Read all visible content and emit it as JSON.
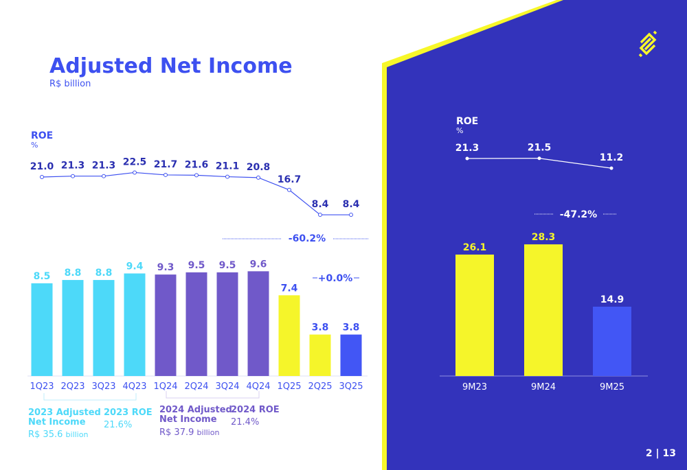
{
  "header": {
    "title": "Adjusted Net Income",
    "subtitle": "R$ billion"
  },
  "page_number": "2 | 13",
  "logo": "banco-do-brasil-logo",
  "colors": {
    "y2023": "#4dd9f9",
    "y2024": "#7059c9",
    "y2025": "#f5f52a",
    "current": "#4256f5",
    "panel": "#3333bb",
    "accent_text": "#3d50f0"
  },
  "chart_data": [
    {
      "type": "bar",
      "title": "",
      "categories": [
        "1Q23",
        "2Q23",
        "3Q23",
        "4Q23",
        "1Q24",
        "2Q24",
        "3Q24",
        "4Q24",
        "1Q25",
        "2Q25",
        "3Q25"
      ],
      "values": [
        8.5,
        8.8,
        8.8,
        9.4,
        9.3,
        9.5,
        9.5,
        9.6,
        7.4,
        3.8,
        3.8
      ],
      "value_labels": [
        "8.5",
        "8.8",
        "8.8",
        "9.4",
        "9.3",
        "9.5",
        "9.5",
        "9.6",
        "7.4",
        "3.8",
        "3.8"
      ],
      "annotations": [
        "+0.0%",
        "-60.2%"
      ],
      "grid": false
    },
    {
      "type": "line",
      "label": "ROE",
      "unit": "%",
      "categories": [
        "1Q23",
        "2Q23",
        "3Q23",
        "4Q23",
        "1Q24",
        "2Q24",
        "3Q24",
        "4Q24",
        "1Q25",
        "2Q25",
        "3Q25"
      ],
      "values": [
        21.0,
        21.3,
        21.3,
        22.5,
        21.7,
        21.6,
        21.1,
        20.8,
        16.7,
        8.4,
        8.4
      ],
      "value_labels": [
        "21.0",
        "21.3",
        "21.3",
        "22.5",
        "21.7",
        "21.6",
        "21.1",
        "20.8",
        "16.7",
        "8.4",
        "8.4"
      ]
    },
    {
      "type": "bar",
      "categories": [
        "9M23",
        "9M24",
        "9M25"
      ],
      "values": [
        26.1,
        28.3,
        14.9
      ],
      "value_labels": [
        "26.1",
        "28.3",
        "14.9"
      ],
      "annotations": [
        "-47.2%"
      ]
    },
    {
      "type": "line",
      "label": "ROE",
      "unit": "%",
      "categories": [
        "9M23",
        "9M24",
        "9M25"
      ],
      "values": [
        21.3,
        21.5,
        11.2
      ],
      "value_labels": [
        "21.3",
        "21.5",
        "11.2"
      ]
    }
  ],
  "summary": {
    "y2023": {
      "ni_label": [
        "2023 Adjusted",
        "Net Income"
      ],
      "ni_value": "R$ 35.6",
      "ni_unit": "billion",
      "roe_label": "2023 ROE",
      "roe_value": "21.6%"
    },
    "y2024": {
      "ni_label": [
        "2024 Adjusted",
        "Net Income"
      ],
      "ni_value": "R$ 37.9",
      "ni_unit": "billion",
      "roe_label": "2024 ROE",
      "roe_value": "21.4%"
    }
  }
}
